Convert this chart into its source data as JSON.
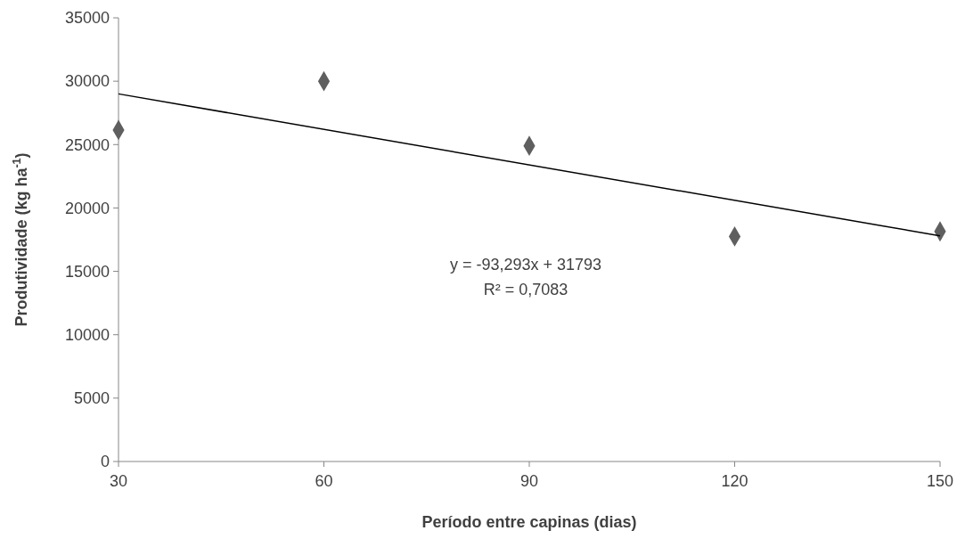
{
  "chart_data": {
    "type": "scatter",
    "xlabel": "Período entre capinas (dias)",
    "ylabel": "Produtividade (kg ha$^{-1}$)",
    "xlim": [
      30,
      150
    ],
    "xticks": [
      30,
      60,
      90,
      120,
      150
    ],
    "ylim": [
      0,
      35000
    ],
    "yticks": [
      0,
      5000,
      10000,
      15000,
      20000,
      25000,
      30000,
      35000
    ],
    "grid": false,
    "marker": "diamond",
    "series": [
      {
        "color": "#5f5f5f",
        "x": [
          30,
          60,
          90,
          120,
          150
        ],
        "values": [
          26150,
          30000,
          24900,
          17750,
          18150
        ]
      },
      {
        "type": "line",
        "marker": "none",
        "color": "#000000",
        "x": [
          30,
          150
        ],
        "values": [
          29000,
          17800
        ]
      }
    ],
    "annotations": [
      "y = -93,293x + 31793",
      "R² = 0,7083"
    ]
  }
}
